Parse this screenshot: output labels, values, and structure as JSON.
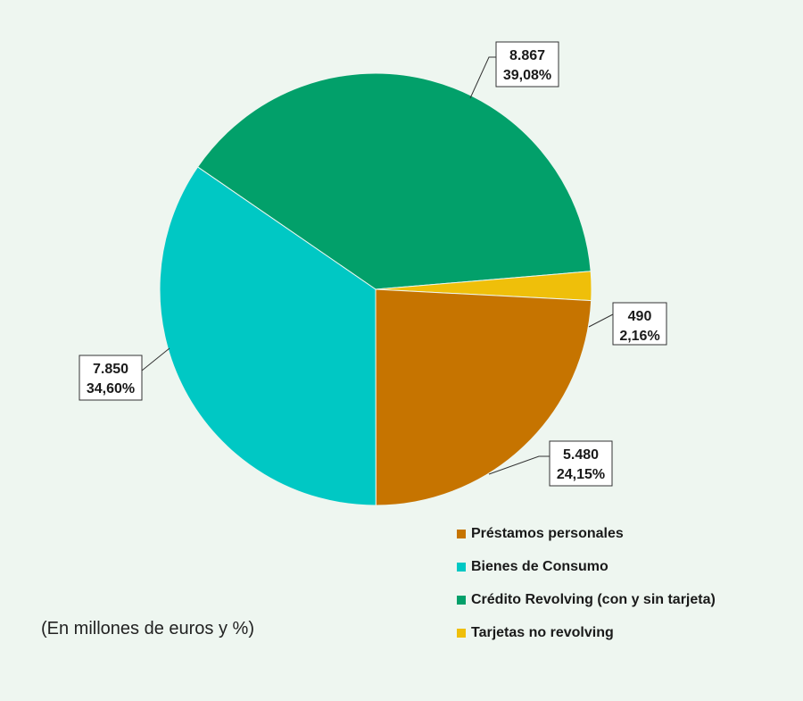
{
  "chart_data": {
    "type": "pie",
    "slices": [
      {
        "label": "Crédito Revolving (con y sin tarjeta)",
        "value": 8867,
        "value_label": "8.867",
        "percent_label": "39,08%",
        "color": "#02a06a"
      },
      {
        "label": "Tarjetas no revolving",
        "value": 490,
        "value_label": "490",
        "percent_label": "2,16%",
        "color": "#efbf0a"
      },
      {
        "label": "Préstamos personales",
        "value": 5480,
        "value_label": "5.480",
        "percent_label": "24,15%",
        "color": "#c67400"
      },
      {
        "label": "Bienes de Consumo",
        "value": 7850,
        "value_label": "7.850",
        "percent_label": "34,60%",
        "color": "#00c8c4"
      }
    ],
    "legend": [
      {
        "label": "Préstamos personales",
        "color": "#c67400"
      },
      {
        "label": "Bienes de Consumo",
        "color": "#00c8c4"
      },
      {
        "label": "Crédito Revolving (con y sin tarjeta)",
        "color": "#02a06a"
      },
      {
        "label": "Tarjetas no revolving",
        "color": "#efbf0a"
      }
    ],
    "legend_position": "bottom-right",
    "note": "(En millones de euros y %)"
  }
}
